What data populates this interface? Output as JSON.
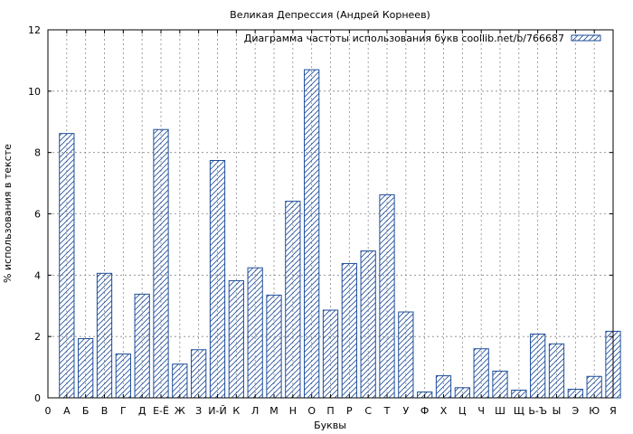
{
  "chart_data": {
    "type": "bar",
    "title": "Великая Депрессия (Андрей Корнеев)",
    "xlabel": "Буквы",
    "ylabel": "% использования в тексте",
    "ylim": [
      0,
      12
    ],
    "yticks": [
      0,
      2,
      4,
      6,
      8,
      10,
      12
    ],
    "x_start_label": "0",
    "grid": true,
    "legend_position": "top-right",
    "bar_color": "#1f4e9a",
    "series": [
      {
        "name": "Диаграмма частоты использования букв coollib.net/b/766687",
        "values": [
          8.62,
          1.93,
          4.06,
          1.43,
          3.38,
          8.75,
          1.1,
          1.57,
          7.74,
          3.82,
          4.24,
          3.35,
          6.41,
          10.7,
          2.86,
          4.38,
          4.79,
          6.62,
          2.8,
          0.19,
          0.72,
          0.33,
          1.6,
          0.87,
          0.25,
          2.08,
          1.76,
          0.28,
          0.7,
          2.17
        ]
      }
    ],
    "categories": [
      "А",
      "Б",
      "В",
      "Г",
      "Д",
      "Е-Ё",
      "Ж",
      "З",
      "И-Й",
      "К",
      "Л",
      "М",
      "Н",
      "О",
      "П",
      "Р",
      "С",
      "Т",
      "У",
      "Ф",
      "Х",
      "Ц",
      "Ч",
      "Ш",
      "Щ",
      "Ь-Ъ",
      "Ы",
      "Э",
      "Ю",
      "Я"
    ]
  }
}
